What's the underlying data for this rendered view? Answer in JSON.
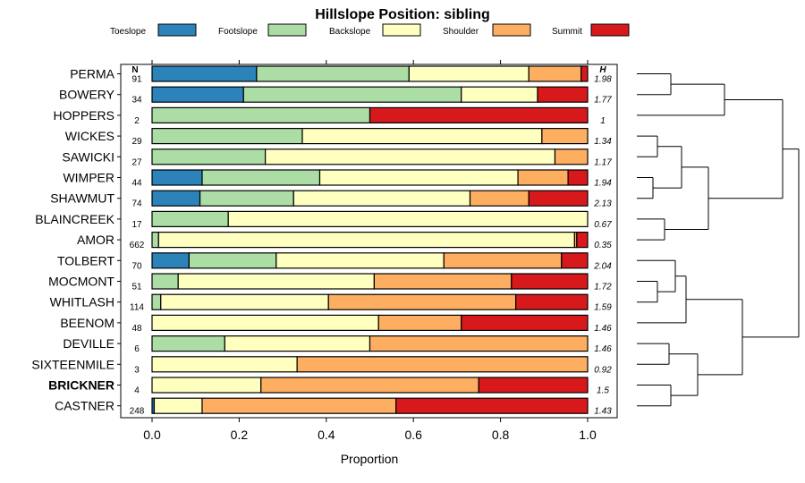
{
  "chart_data": {
    "type": "bar",
    "stacked": true,
    "orientation": "horizontal",
    "title": "Hillslope Position: sibling",
    "xlabel": "Proportion",
    "ylabel": "",
    "xlim": [
      0,
      1
    ],
    "xticks": [
      0.0,
      0.2,
      0.4,
      0.6,
      0.8,
      1.0
    ],
    "xtick_labels": [
      "0.0",
      "0.2",
      "0.4",
      "0.6",
      "0.8",
      "1.0"
    ],
    "n_header": "N",
    "h_header": "H",
    "legend_position": "top",
    "highlighted_category": "BRICKNER",
    "categories": [
      "PERMA",
      "BOWERY",
      "HOPPERS",
      "WICKES",
      "SAWICKI",
      "WIMPER",
      "SHAWMUT",
      "BLAINCREEK",
      "AMOR",
      "TOLBERT",
      "MOCMONT",
      "WHITLASH",
      "BEENOM",
      "DEVILLE",
      "SIXTEENMILE",
      "BRICKNER",
      "CASTNER"
    ],
    "n_labels": [
      "91",
      "34",
      "2",
      "29",
      "27",
      "44",
      "74",
      "17",
      "662",
      "70",
      "51",
      "114",
      "48",
      "6",
      "3",
      "4",
      "248"
    ],
    "h_labels": [
      "1.98",
      "1.77",
      "1",
      "1.34",
      "1.17",
      "1.94",
      "2.13",
      "0.67",
      "0.35",
      "2.04",
      "1.72",
      "1.59",
      "1.46",
      "1.46",
      "0.92",
      "1.5",
      "1.43"
    ],
    "series": [
      {
        "name": "Toeslope",
        "color": "#2b83ba",
        "values": [
          0.24,
          0.21,
          0.0,
          0.0,
          0.0,
          0.115,
          0.11,
          0.0,
          0.0,
          0.085,
          0.0,
          0.0,
          0.0,
          0.0,
          0.0,
          0.0,
          0.005
        ]
      },
      {
        "name": "Footslope",
        "color": "#abdda4",
        "values": [
          0.35,
          0.5,
          0.5,
          0.345,
          0.26,
          0.27,
          0.215,
          0.175,
          0.015,
          0.2,
          0.06,
          0.02,
          0.0,
          0.167,
          0.0,
          0.0,
          0.0
        ]
      },
      {
        "name": "Backslope",
        "color": "#ffffbf",
        "values": [
          0.275,
          0.175,
          0.0,
          0.55,
          0.665,
          0.455,
          0.405,
          0.825,
          0.955,
          0.385,
          0.45,
          0.385,
          0.52,
          0.333,
          0.333,
          0.25,
          0.11
        ]
      },
      {
        "name": "Shoulder",
        "color": "#fdae61",
        "values": [
          0.12,
          0.0,
          0.0,
          0.105,
          0.075,
          0.115,
          0.135,
          0.0,
          0.005,
          0.27,
          0.315,
          0.43,
          0.19,
          0.5,
          0.667,
          0.5,
          0.445
        ]
      },
      {
        "name": "Summit",
        "color": "#d7191c",
        "values": [
          0.015,
          0.115,
          0.5,
          0.0,
          0.0,
          0.045,
          0.135,
          0.0,
          0.025,
          0.06,
          0.175,
          0.165,
          0.29,
          0.0,
          0.0,
          0.25,
          0.44
        ]
      }
    ]
  }
}
